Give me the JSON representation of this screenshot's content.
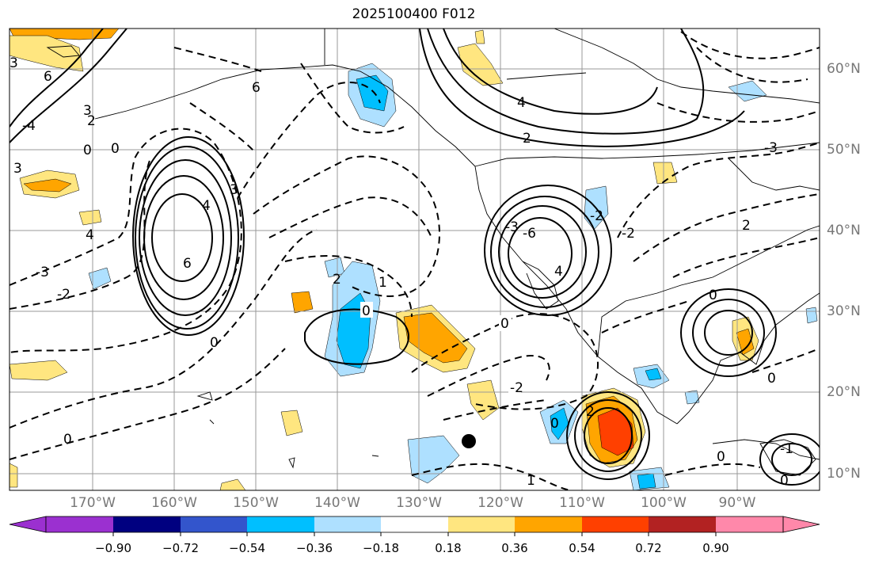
{
  "title": "2025100400 F012",
  "longitude_labels": [
    "170°W",
    "160°W",
    "150°W",
    "140°W",
    "130°W",
    "120°W",
    "110°W",
    "100°W",
    "90°W"
  ],
  "latitude_labels": [
    "60°N",
    "50°N",
    "40°N",
    "30°N",
    "20°N",
    "10°N"
  ],
  "contour_labels": [
    {
      "text": "6"
    },
    {
      "text": "6"
    },
    {
      "text": "4"
    },
    {
      "text": "3"
    },
    {
      "text": "3"
    },
    {
      "text": "2"
    },
    {
      "text": "0"
    },
    {
      "text": "0"
    },
    {
      "text": "6"
    },
    {
      "text": "4"
    },
    {
      "text": "3"
    },
    {
      "text": "-3"
    },
    {
      "text": "-2"
    },
    {
      "text": "-4"
    },
    {
      "text": "0"
    },
    {
      "text": "0"
    },
    {
      "text": "2"
    },
    {
      "text": "1"
    },
    {
      "text": "0"
    },
    {
      "text": "0"
    },
    {
      "text": "-2"
    },
    {
      "text": "4"
    },
    {
      "text": "2"
    },
    {
      "text": "-3"
    },
    {
      "text": "-6"
    },
    {
      "text": "4"
    },
    {
      "text": "-2"
    },
    {
      "text": "-2"
    },
    {
      "text": "2"
    },
    {
      "text": "-3"
    },
    {
      "text": "0"
    },
    {
      "text": "0"
    },
    {
      "text": "0"
    },
    {
      "text": "1"
    },
    {
      "text": "0"
    },
    {
      "text": "2"
    },
    {
      "text": "-1"
    },
    {
      "text": "0"
    },
    {
      "text": "3"
    }
  ],
  "colorbar": {
    "ticks": [
      "−0.90",
      "−0.72",
      "−0.54",
      "−0.36",
      "−0.18",
      "0.18",
      "0.36",
      "0.54",
      "0.72",
      "0.90"
    ],
    "colors": [
      "#9b30d0",
      "#000080",
      "#3355cc",
      "#00bfff",
      "#aee0ff",
      "#ffffff",
      "#ffe680",
      "#ffa500",
      "#ff4000",
      "#b22222",
      "#ff88aa"
    ]
  },
  "marker": "black-dot"
}
